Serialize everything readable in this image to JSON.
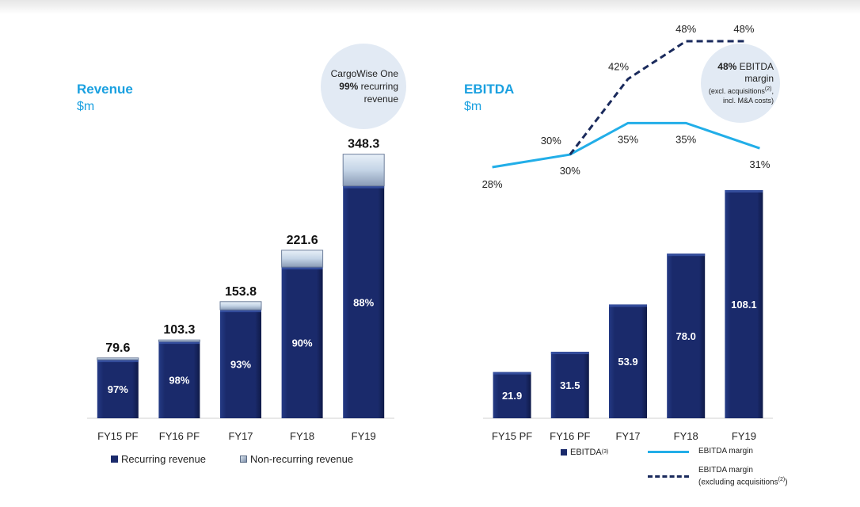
{
  "colors": {
    "recurring": "#1a2a6b",
    "non_recurring": "#c9d8e8",
    "ebitda": "#1a2a6b",
    "margin_line": "#22aee8",
    "margin_dashed": "#1a2a5c",
    "title": "#1aa0e0"
  },
  "revenue_panel": {
    "title": "Revenue",
    "unit": "$m",
    "bubble": {
      "line1": "CargoWise One",
      "strong": "99%",
      "line2": " recurring",
      "line3": "revenue"
    },
    "legend": {
      "recurring": "Recurring revenue",
      "non_recurring": "Non-recurring revenue"
    }
  },
  "ebitda_panel": {
    "title": "EBITDA",
    "unit": "$m",
    "bubble": {
      "strong": "48%",
      "line1": " EBITDA",
      "line2": "margin",
      "line3": "(excl. acquisitions",
      "line3_sup": "(2)",
      "line3_end": ",",
      "line4": "incl. M&A costs)"
    },
    "legend": {
      "ebitda": "EBITDA",
      "ebitda_sup": "(3)",
      "margin": "EBITDA margin",
      "margin_excl_line1": "EBITDA margin",
      "margin_excl_line2": "(excluding acquisitions",
      "margin_excl_sup": "(2)",
      "margin_excl_end": ")"
    }
  },
  "chart_data": [
    {
      "type": "bar",
      "title": "Revenue $m",
      "stacked": true,
      "categories": [
        "FY15 PF",
        "FY16 PF",
        "FY17",
        "FY18",
        "FY19"
      ],
      "totals": [
        79.6,
        103.3,
        153.8,
        221.6,
        348.3
      ],
      "total_labels": [
        "79.6",
        "103.3",
        "153.8",
        "221.6",
        "348.3"
      ],
      "recurring_pct": [
        97,
        98,
        93,
        90,
        88
      ],
      "recurring_labels": [
        "97%",
        "98%",
        "93%",
        "90%",
        "88%"
      ],
      "series": [
        {
          "name": "Recurring revenue"
        },
        {
          "name": "Non-recurring revenue"
        }
      ],
      "ylim": [
        0,
        350
      ]
    },
    {
      "type": "bar",
      "title": "EBITDA $m",
      "categories": [
        "FY15 PF",
        "FY16 PF",
        "FY17",
        "FY18",
        "FY19"
      ],
      "series": [
        {
          "name": "EBITDA",
          "values": [
            21.9,
            31.5,
            53.9,
            78.0,
            108.1
          ],
          "labels": [
            "21.9",
            "31.5",
            "53.9",
            "78.0",
            "108.1"
          ]
        }
      ],
      "ylim": [
        0,
        108.1
      ]
    },
    {
      "type": "line",
      "title": "EBITDA margin",
      "categories": [
        "FY15 PF",
        "FY16 PF",
        "FY17",
        "FY18",
        "FY19"
      ],
      "series": [
        {
          "name": "EBITDA margin",
          "values": [
            28,
            30,
            35,
            35,
            31
          ],
          "labels": [
            "28%",
            "30%",
            "35%",
            "35%",
            "31%"
          ]
        },
        {
          "name": "EBITDA margin (excluding acquisitions)",
          "values": [
            null,
            30,
            42,
            48,
            48
          ],
          "labels": [
            "",
            "30%",
            "42%",
            "48%",
            "48%"
          ]
        }
      ],
      "ylim": [
        28,
        48
      ]
    }
  ]
}
